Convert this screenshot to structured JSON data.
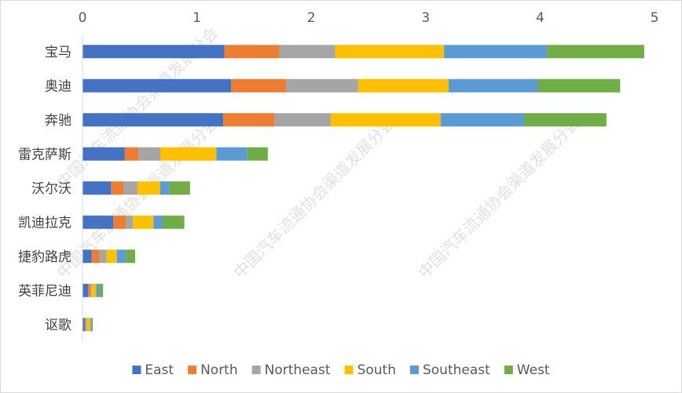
{
  "chart_data": {
    "type": "bar",
    "orientation": "horizontal",
    "stacked": true,
    "categories": [
      "宝马",
      "奥迪",
      "奔驰",
      "雷克萨斯",
      "沃尔沃",
      "凯迪拉克",
      "捷豹路虎",
      "英菲尼迪",
      "讴歌"
    ],
    "series": [
      {
        "name": "East",
        "color": "#4472c4",
        "values": [
          1.24,
          1.3,
          1.23,
          0.37,
          0.25,
          0.27,
          0.08,
          0.05,
          0.02
        ]
      },
      {
        "name": "North",
        "color": "#ed7d31",
        "values": [
          0.48,
          0.48,
          0.45,
          0.12,
          0.11,
          0.11,
          0.07,
          0.02,
          0.01
        ]
      },
      {
        "name": "Northeast",
        "color": "#a5a5a5",
        "values": [
          0.49,
          0.63,
          0.49,
          0.19,
          0.12,
          0.06,
          0.06,
          0.01,
          0.01
        ]
      },
      {
        "name": "South",
        "color": "#ffc000",
        "values": [
          0.95,
          0.79,
          0.96,
          0.49,
          0.2,
          0.18,
          0.09,
          0.04,
          0.03
        ]
      },
      {
        "name": "Southeast",
        "color": "#5b9bd5",
        "values": [
          0.9,
          0.78,
          0.73,
          0.27,
          0.08,
          0.08,
          0.08,
          0.03,
          0.01
        ]
      },
      {
        "name": "West",
        "color": "#70ad47",
        "values": [
          0.85,
          0.72,
          0.72,
          0.18,
          0.18,
          0.19,
          0.08,
          0.03,
          0.01
        ]
      }
    ],
    "xlim": [
      0,
      5
    ],
    "xticks": [
      "0",
      "1",
      "2",
      "3",
      "4",
      "5"
    ],
    "axis_position": "top",
    "legend_position": "bottom",
    "grid": false,
    "watermark": "中国汽车流通协会渠道发展分会"
  }
}
